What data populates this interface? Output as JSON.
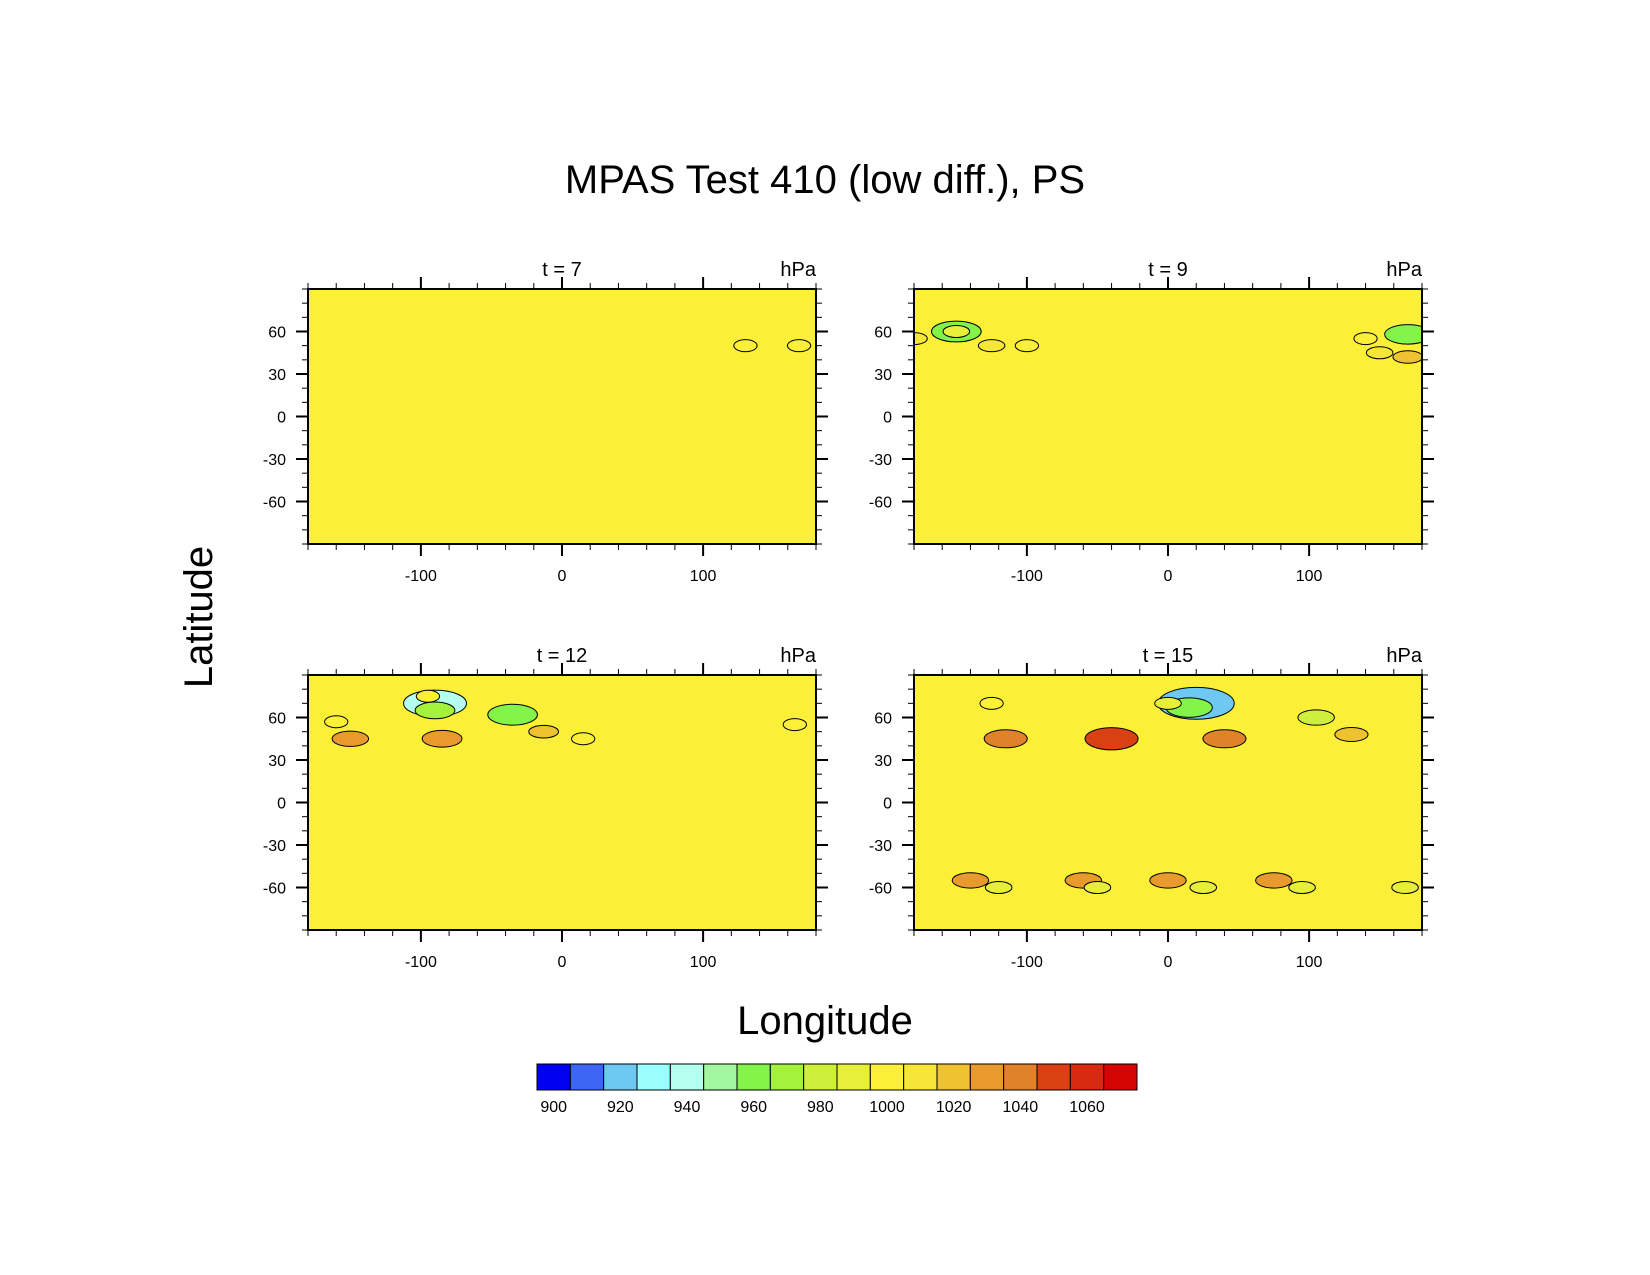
{
  "chart_data": {
    "type": "heatmap",
    "title": "MPAS Test 410 (low diff.), PS",
    "xlabel": "Longitude",
    "ylabel": "Latitude",
    "xlim": [
      -180,
      180
    ],
    "ylim": [
      -90,
      90
    ],
    "x_ticks": [
      -100,
      0,
      100
    ],
    "y_ticks": [
      60,
      30,
      0,
      -30,
      -60
    ],
    "units": "hPa",
    "background_value": 1000,
    "panels": [
      {
        "label": "t = 7",
        "features": [
          {
            "lon": 130,
            "lat": 50,
            "value": 995
          },
          {
            "lon": 168,
            "lat": 50,
            "value": 995
          }
        ]
      },
      {
        "label": "t = 9",
        "features": [
          {
            "lon": -180,
            "lat": 55,
            "value": 1010
          },
          {
            "lon": -150,
            "lat": 60,
            "value": 955
          },
          {
            "lon": -150,
            "lat": 60,
            "value": 990
          },
          {
            "lon": -125,
            "lat": 50,
            "value": 1010
          },
          {
            "lon": -100,
            "lat": 50,
            "value": 995
          },
          {
            "lon": 170,
            "lat": 58,
            "value": 960
          },
          {
            "lon": 140,
            "lat": 55,
            "value": 995
          },
          {
            "lon": 150,
            "lat": 45,
            "value": 1010
          },
          {
            "lon": 170,
            "lat": 42,
            "value": 1015
          }
        ]
      },
      {
        "label": "t = 12",
        "features": [
          {
            "lon": -90,
            "lat": 70,
            "value": 935
          },
          {
            "lon": -90,
            "lat": 65,
            "value": 970
          },
          {
            "lon": -35,
            "lat": 62,
            "value": 955
          },
          {
            "lon": -95,
            "lat": 75,
            "value": 995
          },
          {
            "lon": -85,
            "lat": 45,
            "value": 1030
          },
          {
            "lon": -150,
            "lat": 45,
            "value": 1025
          },
          {
            "lon": -13,
            "lat": 50,
            "value": 1015
          },
          {
            "lon": 15,
            "lat": 45,
            "value": 995
          },
          {
            "lon": -160,
            "lat": 57,
            "value": 995
          },
          {
            "lon": 165,
            "lat": 55,
            "value": 995
          }
        ]
      },
      {
        "label": "t = 15",
        "features": [
          {
            "lon": 20,
            "lat": 70,
            "value": 915
          },
          {
            "lon": 15,
            "lat": 67,
            "value": 960
          },
          {
            "lon": 0,
            "lat": 70,
            "value": 990
          },
          {
            "lon": -40,
            "lat": 45,
            "value": 1050
          },
          {
            "lon": 40,
            "lat": 45,
            "value": 1035
          },
          {
            "lon": -115,
            "lat": 45,
            "value": 1035
          },
          {
            "lon": 105,
            "lat": 60,
            "value": 975
          },
          {
            "lon": 130,
            "lat": 48,
            "value": 1020
          },
          {
            "lon": -125,
            "lat": 70,
            "value": 995
          },
          {
            "lon": -60,
            "lat": -55,
            "value": 1025
          },
          {
            "lon": 0,
            "lat": -55,
            "value": 1025
          },
          {
            "lon": 75,
            "lat": -55,
            "value": 1025
          },
          {
            "lon": -140,
            "lat": -55,
            "value": 1025
          },
          {
            "lon": -120,
            "lat": -60,
            "value": 990
          },
          {
            "lon": -50,
            "lat": -60,
            "value": 990
          },
          {
            "lon": 25,
            "lat": -60,
            "value": 990
          },
          {
            "lon": 95,
            "lat": -60,
            "value": 990
          },
          {
            "lon": 168,
            "lat": -60,
            "value": 990
          }
        ]
      }
    ],
    "colorbar": {
      "ticks": [
        900,
        920,
        940,
        960,
        980,
        1000,
        1020,
        1040,
        1060
      ],
      "levels": [
        895,
        905,
        915,
        925,
        935,
        945,
        955,
        965,
        975,
        985,
        995,
        1005,
        1015,
        1025,
        1035,
        1045,
        1055,
        1065
      ],
      "colors": [
        "#0000f2",
        "#3d66f5",
        "#6fc8f2",
        "#99ffff",
        "#b4fff0",
        "#a2f7a0",
        "#83f54a",
        "#a5f23c",
        "#cff03a",
        "#e8ef3b",
        "#fbef37",
        "#f6e637",
        "#efc232",
        "#e89a2c",
        "#e0822a",
        "#d94114",
        "#d9290e",
        "#d50404"
      ]
    }
  }
}
